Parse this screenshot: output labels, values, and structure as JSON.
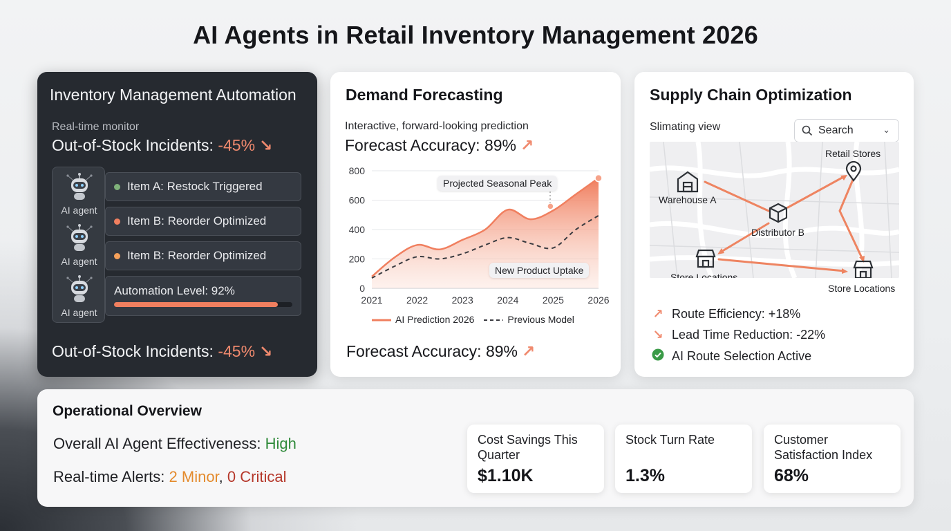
{
  "page": {
    "title": "AI Agents in Retail Inventory Management 2026"
  },
  "inventory": {
    "title": "Inventory Management Automation",
    "monitor_label": "Real-time monitor",
    "oos_label": "Out-of-Stock Incidents:",
    "oos_value": "-45%",
    "agents": [
      "AI agent",
      "AI agent",
      "AI agent"
    ],
    "items": [
      {
        "label": "Item A: Restock Triggered",
        "dot_color": "#7fb27a"
      },
      {
        "label": "Item B: Reorder Optimized",
        "dot_color": "#f07f5f"
      },
      {
        "label": "Item B: Reorder Optimized",
        "dot_color": "#f5a05a"
      }
    ],
    "automation_label": "Automation Level: 92%",
    "automation_level": 0.92,
    "oos_bottom_label": "Out-of-Stock Incidents:",
    "oos_bottom_value": "-45%"
  },
  "forecast": {
    "title": "Demand Forecasting",
    "subtitle": "Interactive, forward-looking prediction",
    "accuracy_label": "Forecast Accuracy: 89%",
    "accuracy_bottom_label": "Forecast Accuracy: 89%",
    "callout_peak": "Projected Seasonal Peak",
    "callout_uptake": "New Product Uptake"
  },
  "chart_data": {
    "type": "area",
    "x": [
      2021,
      2021.5,
      2022,
      2022.5,
      2023,
      2023.5,
      2024,
      2024.5,
      2025,
      2025.5,
      2026
    ],
    "x_ticks": [
      "2021",
      "2022",
      "2023",
      "2024",
      "2025",
      "2026"
    ],
    "y_ticks": [
      "0",
      "200",
      "400",
      "600",
      "800"
    ],
    "ylim": [
      0,
      800
    ],
    "series": [
      {
        "name": "AI Prediction 2026",
        "values": [
          80,
          210,
          295,
          265,
          330,
          400,
          535,
          470,
          530,
          640,
          750
        ],
        "color": "#f07f5f",
        "style": "solid-area"
      },
      {
        "name": "Previous Model",
        "values": [
          70,
          150,
          215,
          200,
          235,
          295,
          345,
          305,
          275,
          400,
          495
        ],
        "color": "#3a3b40",
        "style": "dashed"
      }
    ],
    "legend_placement": "bottom"
  },
  "supply": {
    "title": "Supply Chain Optimization",
    "view_label": "Slimating view",
    "search_label": "Search",
    "nodes": {
      "retail": "Retail Stores",
      "warehouse": "Warehouse A",
      "distributor": "Distributor B",
      "store_left": "Store Locations",
      "store_right": "Store Locations"
    },
    "metrics": [
      {
        "icon": "trend-up-icon",
        "label": "Route Efficiency: +18%"
      },
      {
        "icon": "trend-down-icon",
        "label": "Lead Time Reduction: -22%"
      },
      {
        "icon": "check-circle-icon",
        "label": "AI Route Selection Active"
      }
    ],
    "accent_color": "#ee8461",
    "check_color": "#3a9b47"
  },
  "ops": {
    "title": "Operational Overview",
    "effectiveness_label": "Overall AI Agent Effectiveness:",
    "effectiveness_value": "High",
    "alerts_label": "Real-time Alerts:",
    "alerts_minor": "2 Minor",
    "alerts_sep": ",",
    "alerts_critical": "0 Critical",
    "kpis": [
      {
        "label": "Cost Savings This Quarter",
        "value": "$1.10K"
      },
      {
        "label": "Stock Turn Rate",
        "value": "1.3%"
      },
      {
        "label": "Customer Satisfaction Index",
        "value": "68%"
      }
    ]
  }
}
